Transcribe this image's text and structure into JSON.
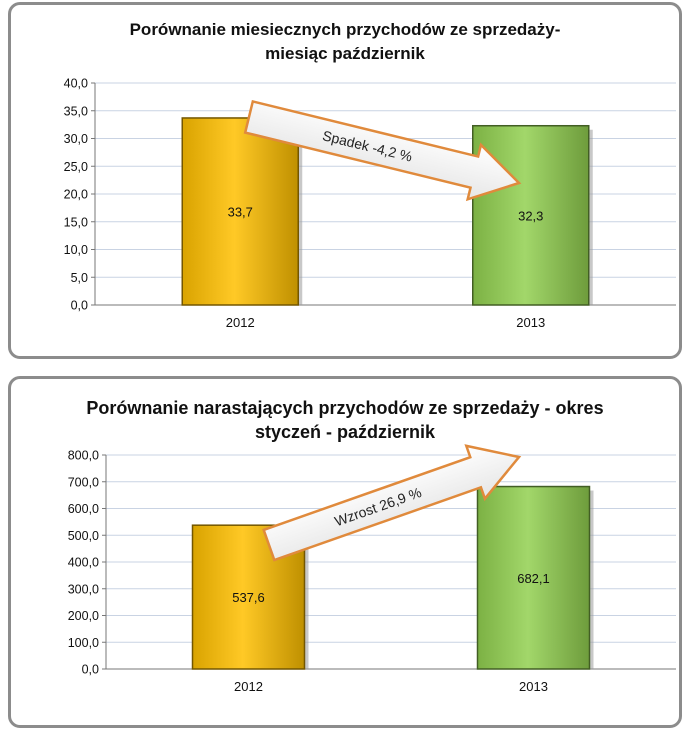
{
  "chart_data": [
    {
      "type": "bar",
      "title_lines": [
        "Porównanie miesiecznych przychodów ze sprzedaży-",
        "miesiąc październik"
      ],
      "categories": [
        "2012",
        "2013"
      ],
      "values": [
        33.7,
        32.3
      ],
      "value_labels": [
        "33,7",
        "32,3"
      ],
      "y_ticks": [
        "0,0",
        "5,0",
        "10,0",
        "15,0",
        "20,0",
        "25,0",
        "30,0",
        "35,0",
        "40,0"
      ],
      "ylim": [
        0,
        40
      ],
      "grid": true,
      "bar_colors": [
        "#FFC000",
        "#92D050"
      ],
      "annotation": "Spadek  -4,2 %",
      "annotation_direction": "down"
    },
    {
      "type": "bar",
      "title_lines": [
        "Porównanie narastających przychodów ze sprzedaży - okres",
        "styczeń - październik"
      ],
      "categories": [
        "2012",
        "2013"
      ],
      "values": [
        537.6,
        682.1
      ],
      "value_labels": [
        "537,6",
        "682,1"
      ],
      "y_ticks": [
        "0,0",
        "100,0",
        "200,0",
        "300,0",
        "400,0",
        "500,0",
        "600,0",
        "700,0",
        "800,0"
      ],
      "ylim": [
        0,
        800
      ],
      "grid": true,
      "bar_colors": [
        "#FFC000",
        "#92D050"
      ],
      "annotation": "Wzrost 26,9 %",
      "annotation_direction": "up"
    }
  ]
}
